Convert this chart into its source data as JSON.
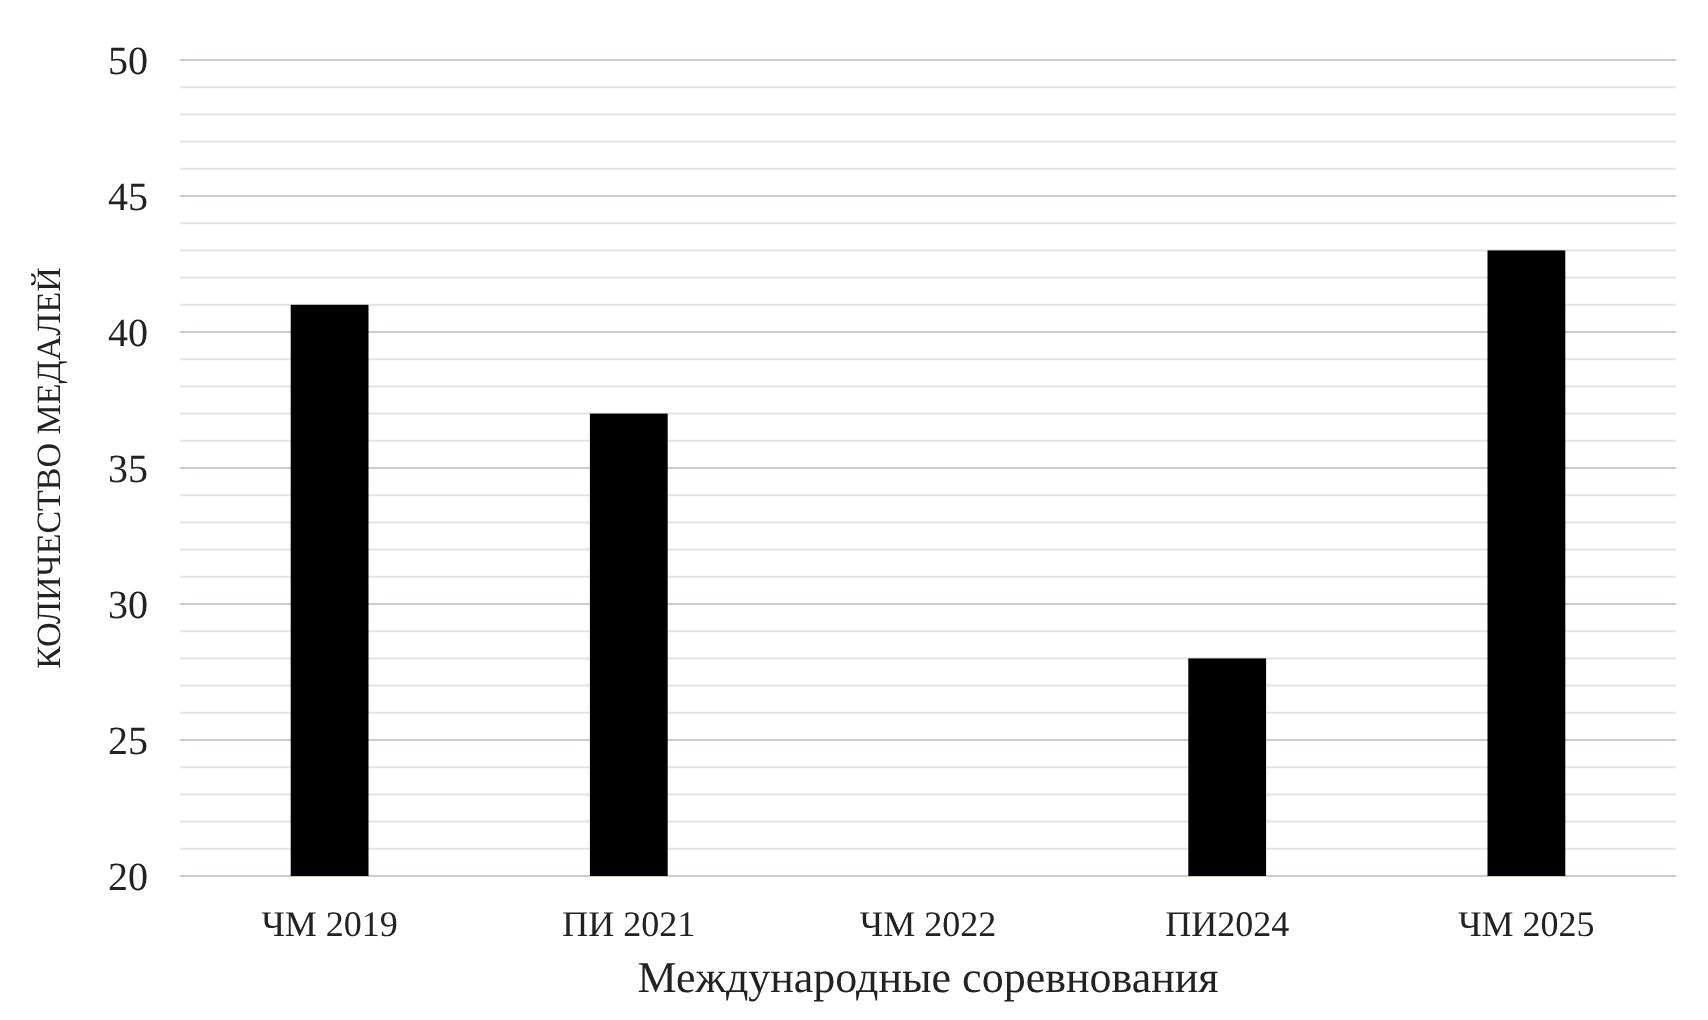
{
  "chart_data": {
    "type": "bar",
    "xlabel": "Международные соревнования",
    "ylabel": "КОЛИЧЕСТВО МЕДАЛЕЙ",
    "categories": [
      "ЧМ 2019",
      "ПИ 2021",
      "ЧМ 2022",
      "ПИ2024",
      "ЧМ 2025"
    ],
    "values": [
      41,
      37,
      null,
      28,
      43
    ],
    "color": "#000000",
    "ylim": [
      20,
      50
    ],
    "yticks": [
      20,
      {
        "value": 21,
        "label": null
      },
      {
        "value": 22,
        "label": null
      },
      {
        "value": 23,
        "label": null
      },
      {
        "value": 24,
        "label": null
      },
      25,
      {
        "value": 26,
        "label": null
      },
      {
        "value": 27,
        "label": null
      },
      {
        "value": 28,
        "label": null
      },
      {
        "value": 29,
        "label": null
      },
      30,
      {
        "value": 31,
        "label": null
      },
      {
        "value": 32,
        "label": null
      },
      {
        "value": 33,
        "label": null
      },
      {
        "value": 34,
        "label": null
      },
      35,
      {
        "value": 36,
        "label": null
      },
      {
        "value": 37,
        "label": null
      },
      {
        "value": 38,
        "label": null
      },
      {
        "value": 39,
        "label": null
      },
      40,
      {
        "value": 41,
        "label": null
      },
      {
        "value": 42,
        "label": null
      },
      {
        "value": 43,
        "label": null
      },
      {
        "value": 44,
        "label": null
      },
      45,
      {
        "value": 46,
        "label": null
      },
      {
        "value": 47,
        "label": null
      },
      {
        "value": 48,
        "label": null
      },
      {
        "value": 49,
        "label": null
      },
      50
    ],
    "grid": "y"
  }
}
